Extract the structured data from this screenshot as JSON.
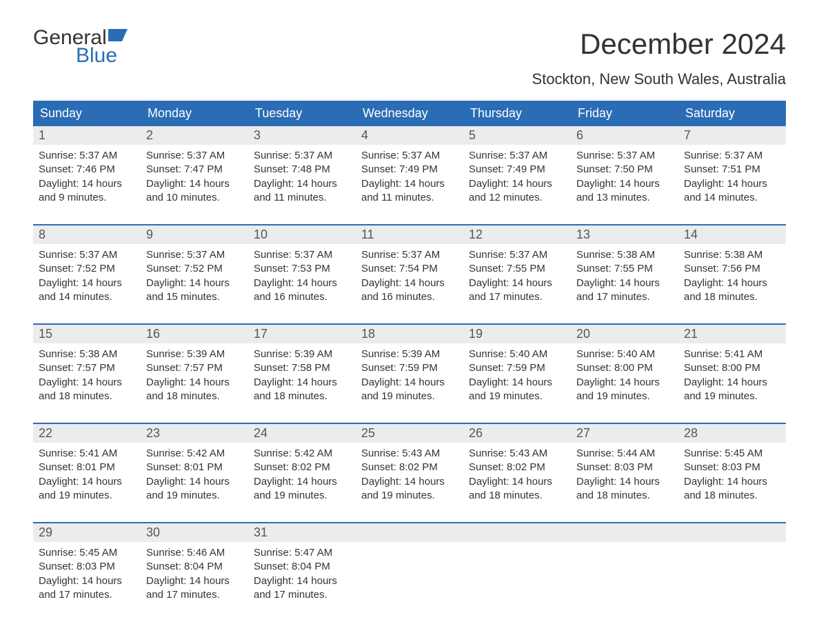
{
  "branding": {
    "logo_word1": "General",
    "logo_word2": "Blue",
    "logo_word1_color": "#333333",
    "logo_word2_color": "#2a6db5",
    "flag_color": "#2a6db5"
  },
  "title": "December 2024",
  "location": "Stockton, New South Wales, Australia",
  "colors": {
    "header_bg": "#2a6db5",
    "header_text": "#ffffff",
    "daynum_bg": "#ececec",
    "daynum_text": "#555555",
    "body_text": "#333333",
    "week_divider": "#2a6db5",
    "page_bg": "#ffffff"
  },
  "typography": {
    "title_fontsize": 42,
    "location_fontsize": 22,
    "weekday_fontsize": 18,
    "daynum_fontsize": 18,
    "cell_fontsize": 15,
    "font_family": "Arial"
  },
  "weekdays": [
    "Sunday",
    "Monday",
    "Tuesday",
    "Wednesday",
    "Thursday",
    "Friday",
    "Saturday"
  ],
  "labels": {
    "sunrise_prefix": "Sunrise: ",
    "sunset_prefix": "Sunset: ",
    "daylight_prefix": "Daylight: "
  },
  "weeks": [
    {
      "days": [
        {
          "n": "1",
          "sunrise": "5:37 AM",
          "sunset": "7:46 PM",
          "daylight": "14 hours and 9 minutes."
        },
        {
          "n": "2",
          "sunrise": "5:37 AM",
          "sunset": "7:47 PM",
          "daylight": "14 hours and 10 minutes."
        },
        {
          "n": "3",
          "sunrise": "5:37 AM",
          "sunset": "7:48 PM",
          "daylight": "14 hours and 11 minutes."
        },
        {
          "n": "4",
          "sunrise": "5:37 AM",
          "sunset": "7:49 PM",
          "daylight": "14 hours and 11 minutes."
        },
        {
          "n": "5",
          "sunrise": "5:37 AM",
          "sunset": "7:49 PM",
          "daylight": "14 hours and 12 minutes."
        },
        {
          "n": "6",
          "sunrise": "5:37 AM",
          "sunset": "7:50 PM",
          "daylight": "14 hours and 13 minutes."
        },
        {
          "n": "7",
          "sunrise": "5:37 AM",
          "sunset": "7:51 PM",
          "daylight": "14 hours and 14 minutes."
        }
      ]
    },
    {
      "days": [
        {
          "n": "8",
          "sunrise": "5:37 AM",
          "sunset": "7:52 PM",
          "daylight": "14 hours and 14 minutes."
        },
        {
          "n": "9",
          "sunrise": "5:37 AM",
          "sunset": "7:52 PM",
          "daylight": "14 hours and 15 minutes."
        },
        {
          "n": "10",
          "sunrise": "5:37 AM",
          "sunset": "7:53 PM",
          "daylight": "14 hours and 16 minutes."
        },
        {
          "n": "11",
          "sunrise": "5:37 AM",
          "sunset": "7:54 PM",
          "daylight": "14 hours and 16 minutes."
        },
        {
          "n": "12",
          "sunrise": "5:37 AM",
          "sunset": "7:55 PM",
          "daylight": "14 hours and 17 minutes."
        },
        {
          "n": "13",
          "sunrise": "5:38 AM",
          "sunset": "7:55 PM",
          "daylight": "14 hours and 17 minutes."
        },
        {
          "n": "14",
          "sunrise": "5:38 AM",
          "sunset": "7:56 PM",
          "daylight": "14 hours and 18 minutes."
        }
      ]
    },
    {
      "days": [
        {
          "n": "15",
          "sunrise": "5:38 AM",
          "sunset": "7:57 PM",
          "daylight": "14 hours and 18 minutes."
        },
        {
          "n": "16",
          "sunrise": "5:39 AM",
          "sunset": "7:57 PM",
          "daylight": "14 hours and 18 minutes."
        },
        {
          "n": "17",
          "sunrise": "5:39 AM",
          "sunset": "7:58 PM",
          "daylight": "14 hours and 18 minutes."
        },
        {
          "n": "18",
          "sunrise": "5:39 AM",
          "sunset": "7:59 PM",
          "daylight": "14 hours and 19 minutes."
        },
        {
          "n": "19",
          "sunrise": "5:40 AM",
          "sunset": "7:59 PM",
          "daylight": "14 hours and 19 minutes."
        },
        {
          "n": "20",
          "sunrise": "5:40 AM",
          "sunset": "8:00 PM",
          "daylight": "14 hours and 19 minutes."
        },
        {
          "n": "21",
          "sunrise": "5:41 AM",
          "sunset": "8:00 PM",
          "daylight": "14 hours and 19 minutes."
        }
      ]
    },
    {
      "days": [
        {
          "n": "22",
          "sunrise": "5:41 AM",
          "sunset": "8:01 PM",
          "daylight": "14 hours and 19 minutes."
        },
        {
          "n": "23",
          "sunrise": "5:42 AM",
          "sunset": "8:01 PM",
          "daylight": "14 hours and 19 minutes."
        },
        {
          "n": "24",
          "sunrise": "5:42 AM",
          "sunset": "8:02 PM",
          "daylight": "14 hours and 19 minutes."
        },
        {
          "n": "25",
          "sunrise": "5:43 AM",
          "sunset": "8:02 PM",
          "daylight": "14 hours and 19 minutes."
        },
        {
          "n": "26",
          "sunrise": "5:43 AM",
          "sunset": "8:02 PM",
          "daylight": "14 hours and 18 minutes."
        },
        {
          "n": "27",
          "sunrise": "5:44 AM",
          "sunset": "8:03 PM",
          "daylight": "14 hours and 18 minutes."
        },
        {
          "n": "28",
          "sunrise": "5:45 AM",
          "sunset": "8:03 PM",
          "daylight": "14 hours and 18 minutes."
        }
      ]
    },
    {
      "days": [
        {
          "n": "29",
          "sunrise": "5:45 AM",
          "sunset": "8:03 PM",
          "daylight": "14 hours and 17 minutes."
        },
        {
          "n": "30",
          "sunrise": "5:46 AM",
          "sunset": "8:04 PM",
          "daylight": "14 hours and 17 minutes."
        },
        {
          "n": "31",
          "sunrise": "5:47 AM",
          "sunset": "8:04 PM",
          "daylight": "14 hours and 17 minutes."
        },
        null,
        null,
        null,
        null
      ]
    }
  ]
}
